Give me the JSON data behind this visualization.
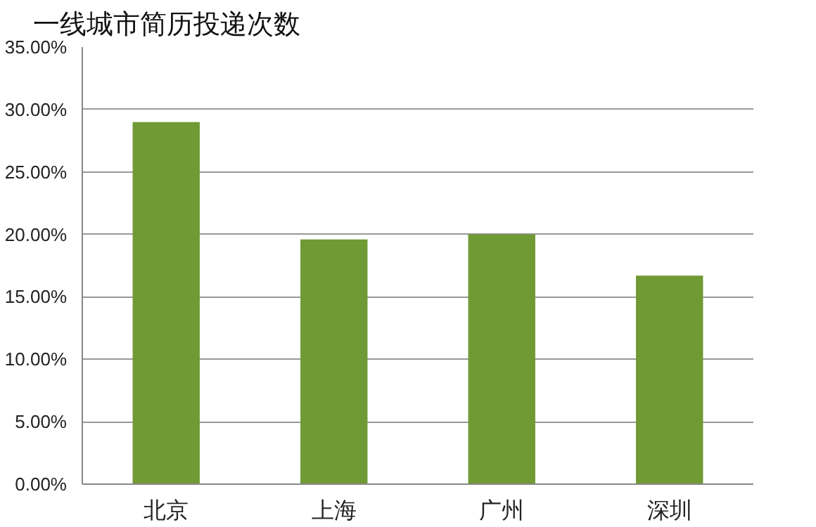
{
  "chart_data": {
    "type": "bar",
    "title": "一线城市简历投递次数",
    "categories": [
      "北京",
      "上海",
      "广州",
      "深圳"
    ],
    "values": [
      29.0,
      19.6,
      20.0,
      16.7
    ],
    "color": "#6f9a34",
    "ylim": [
      0,
      35
    ],
    "yticks": [
      {
        "value": 0,
        "label": "0.00%"
      },
      {
        "value": 5,
        "label": "5.00%"
      },
      {
        "value": 10,
        "label": "10.00%"
      },
      {
        "value": 15,
        "label": "15.00%"
      },
      {
        "value": 20,
        "label": "20.00%"
      },
      {
        "value": 25,
        "label": "25.00%"
      },
      {
        "value": 30,
        "label": "30.00%"
      },
      {
        "value": 35,
        "label": "35.00%"
      }
    ],
    "grid": "y"
  }
}
